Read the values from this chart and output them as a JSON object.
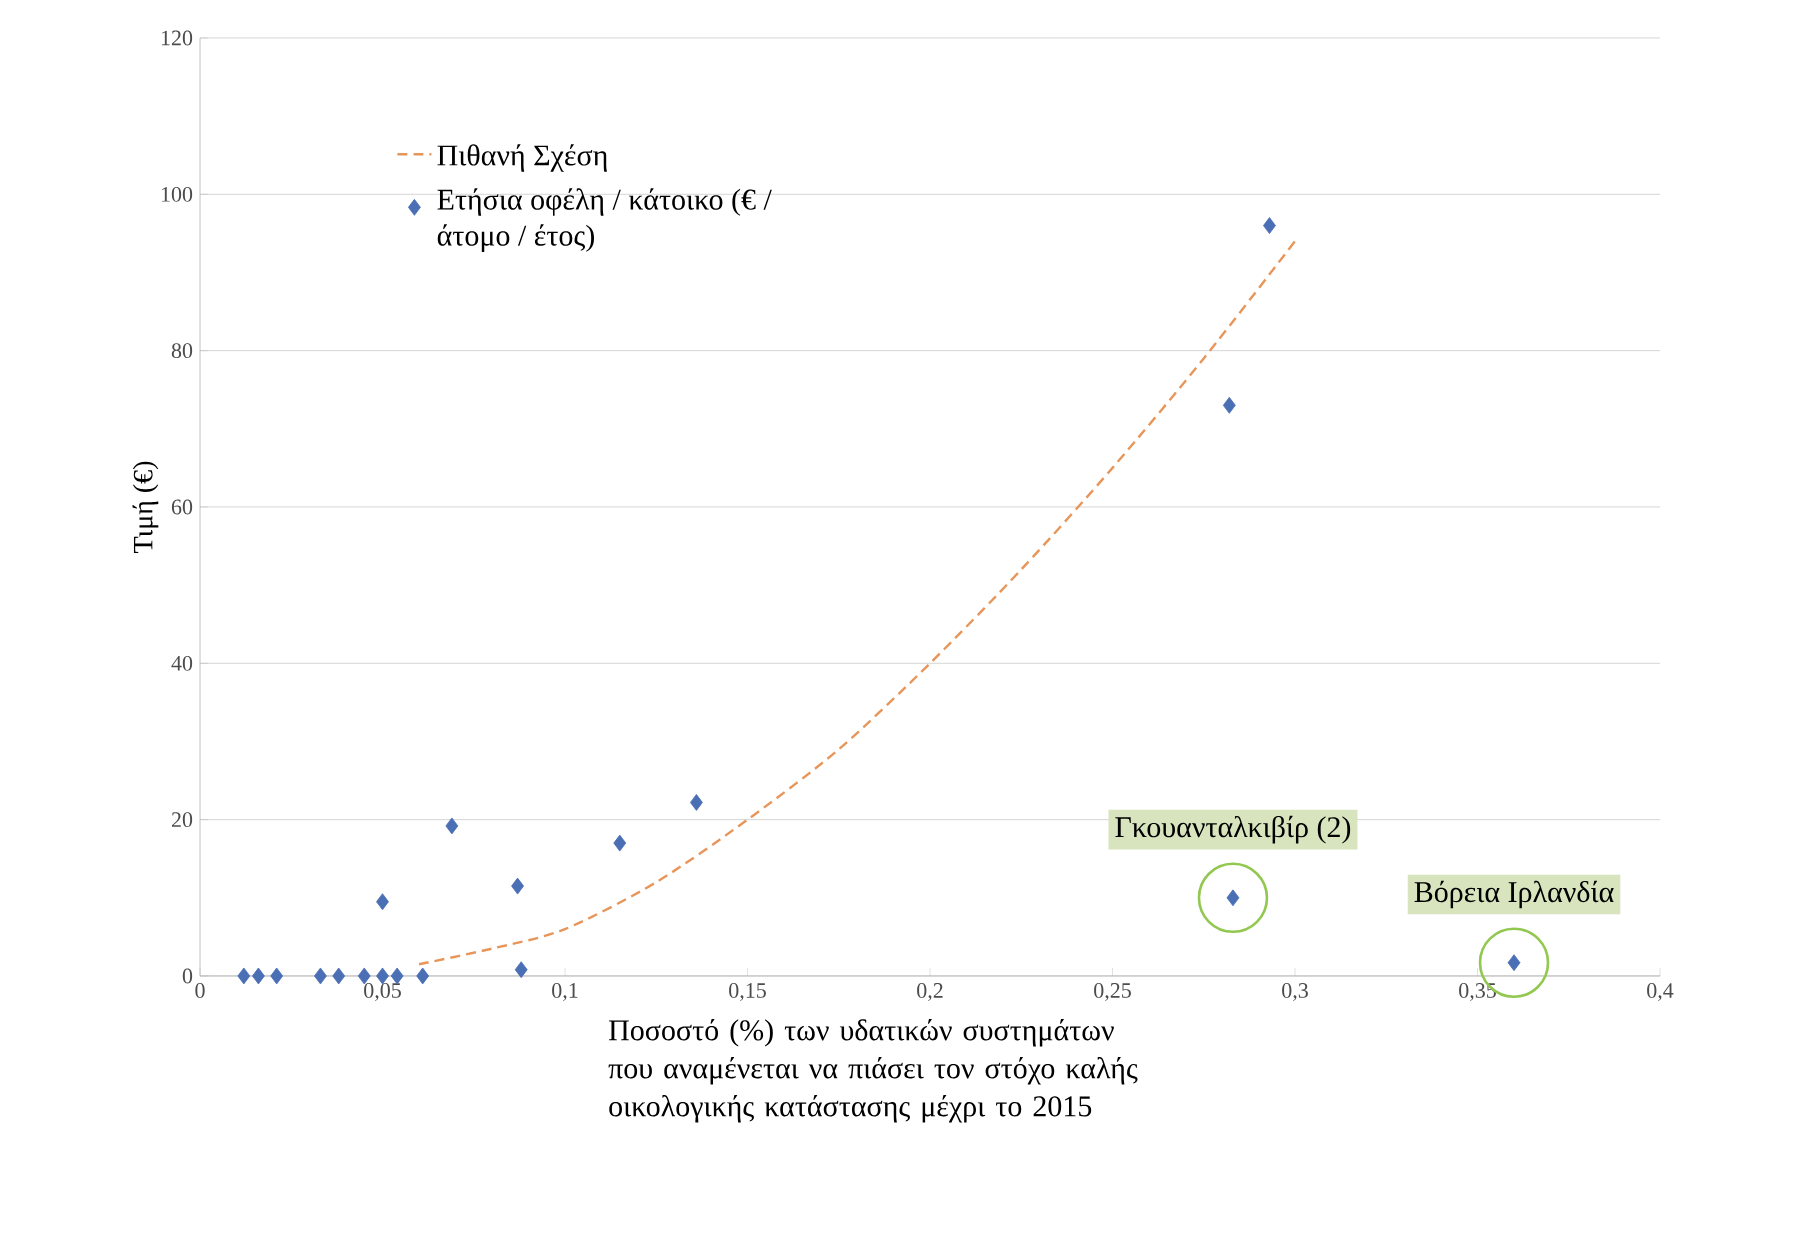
{
  "chart_data": {
    "type": "scatter",
    "xlabel": "Ποσοστό (%) των υδατικών συστημάτων που αναμένεται να πιάσει τον στόχο καλής οικολογικής κατάστασης μέχρι το 2015",
    "ylabel": "Τιμή (€)",
    "series": [
      {
        "name": "Πιθανή Σχέση",
        "type": "line",
        "line_style": "dashed",
        "marker": "none",
        "color": "#e8955a",
        "x": [
          0.06,
          0.08,
          0.1,
          0.125,
          0.15,
          0.175,
          0.2,
          0.225,
          0.25,
          0.275,
          0.3
        ],
        "values": [
          1.5,
          3.5,
          6,
          12,
          20,
          29,
          40,
          52,
          65,
          79,
          94
        ]
      },
      {
        "name": "Ετήσια οφέλη / κάτοικο (€ / άτομο / έτος)",
        "marker": "diamond",
        "color": "#4a6fb5",
        "x": [
          0.012,
          0.016,
          0.021,
          0.033,
          0.038,
          0.045,
          0.05,
          0.054,
          0.061,
          0.05,
          0.069,
          0.087,
          0.088,
          0.115,
          0.136,
          0.282,
          0.293,
          0.283,
          0.36
        ],
        "values": [
          0,
          0,
          0,
          0,
          0,
          0,
          0,
          0,
          0,
          9.5,
          19.2,
          11.5,
          0.8,
          17,
          22.2,
          73,
          96,
          10,
          1.7
        ]
      }
    ],
    "annotations": [
      {
        "text": "Γκουανταλκιβίρ (2)",
        "x": 0.283,
        "y": 10
      },
      {
        "text": "Βόρεια Ιρλανδία",
        "x": 0.36,
        "y": 1.7
      }
    ],
    "xlim": [
      0,
      0.4
    ],
    "ylim": [
      0,
      120
    ],
    "xticks": [
      0,
      {
        "value": 0.05,
        "label": "0,05"
      },
      {
        "value": 0.1,
        "label": "0,1"
      },
      {
        "value": 0.15,
        "label": "0,15"
      },
      {
        "value": 0.2,
        "label": "0,2"
      },
      {
        "value": 0.25,
        "label": "0,25"
      },
      {
        "value": 0.3,
        "label": "0,3"
      },
      {
        "value": 0.35,
        "label": "0,35"
      },
      {
        "value": 0.4,
        "label": "0,4"
      }
    ],
    "yticks": [
      0,
      20,
      40,
      60,
      80,
      100,
      120
    ],
    "grid": "y",
    "legend": "top left"
  }
}
